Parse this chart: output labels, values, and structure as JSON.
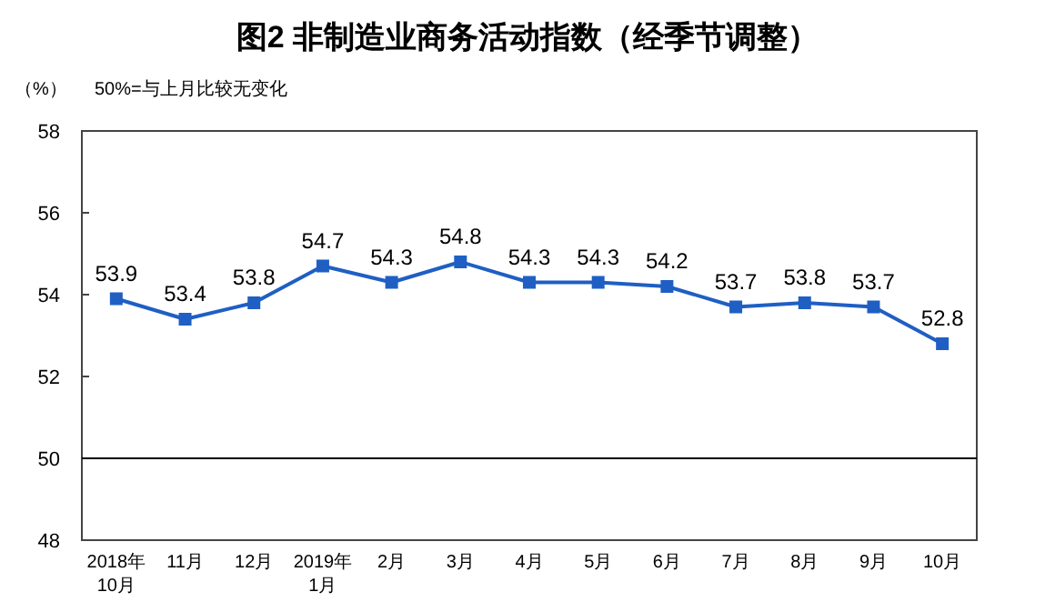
{
  "chart_data": {
    "type": "line",
    "title": "图2 非制造业商务活动指数（经季节调整）",
    "ylabel": "（%）",
    "annotations": [
      "50%=与上月比较无变化"
    ],
    "categories": [
      "2018年\n10月",
      "11月",
      "12月",
      "2019年\n1月",
      "2月",
      "3月",
      "4月",
      "5月",
      "6月",
      "7月",
      "8月",
      "9月",
      "10月"
    ],
    "series": [
      {
        "color": "#1f5fc4",
        "values": [
          53.9,
          53.4,
          53.8,
          54.7,
          54.3,
          54.8,
          54.3,
          54.3,
          54.2,
          53.7,
          53.8,
          53.7,
          52.8
        ]
      }
    ],
    "ylim": [
      48,
      58
    ],
    "yticks": [
      48,
      50,
      52,
      54,
      56,
      58
    ],
    "ref_lines": [
      {
        "axis": "y",
        "value": 50,
        "color": "#000000"
      }
    ],
    "marker": "square",
    "data_labels": true,
    "grid": false
  }
}
